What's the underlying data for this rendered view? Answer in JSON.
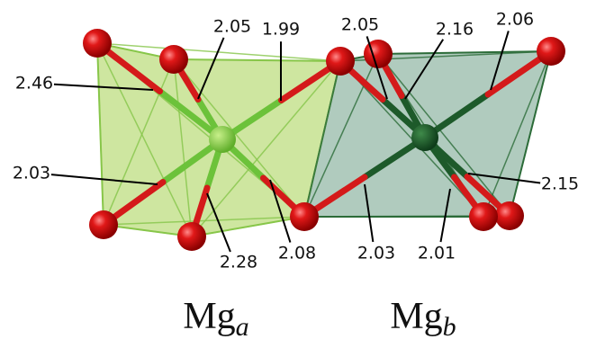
{
  "bond_labels": [
    "2.46",
    "2.05",
    "1.99",
    "2.05",
    "2.16",
    "2.06",
    "2.03",
    "2.15",
    "2.28",
    "2.08",
    "2.03",
    "2.01"
  ],
  "captions": [
    {
      "base": "Mg",
      "sub": "a"
    },
    {
      "base": "Mg",
      "sub": "b"
    }
  ]
}
